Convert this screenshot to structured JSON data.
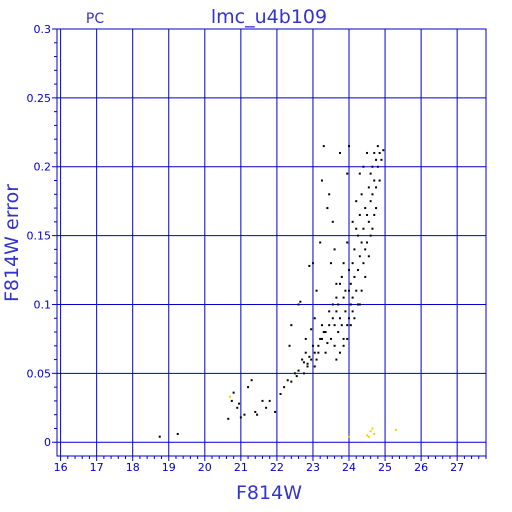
{
  "chart_data": {
    "type": "scatter",
    "title": "lmc_u4b109",
    "corner_label": "PC",
    "xlabel": "F814W",
    "ylabel": "F814W error",
    "xlim": [
      15.9,
      27.8
    ],
    "ylim": [
      -0.01,
      0.3
    ],
    "xticks": [
      "16",
      "17",
      "18",
      "19",
      "20",
      "21",
      "22",
      "23",
      "24",
      "25",
      "26",
      "27"
    ],
    "yticks": [
      "0",
      "0.05",
      "0.1",
      "0.15",
      "0.2",
      "0.25",
      "0.3"
    ],
    "grid": true,
    "colors": {
      "grid": "#0000cc",
      "axes": "#0000cc",
      "main_points": "#000000",
      "minor_points": "#ffcc00"
    },
    "series": [
      {
        "color": "#000000",
        "points": [
          [
            18.75,
            0.004
          ],
          [
            19.25,
            0.006
          ],
          [
            20.65,
            0.017
          ],
          [
            20.75,
            0.03
          ],
          [
            20.8,
            0.036
          ],
          [
            20.9,
            0.025
          ],
          [
            20.95,
            0.028
          ],
          [
            21.0,
            0.018
          ],
          [
            21.1,
            0.02
          ],
          [
            21.2,
            0.04
          ],
          [
            21.3,
            0.045
          ],
          [
            21.4,
            0.022
          ],
          [
            21.45,
            0.02
          ],
          [
            21.6,
            0.03
          ],
          [
            21.7,
            0.025
          ],
          [
            21.95,
            0.022
          ],
          [
            21.8,
            0.03
          ],
          [
            22.1,
            0.035
          ],
          [
            22.2,
            0.04
          ],
          [
            22.3,
            0.045
          ],
          [
            22.35,
            0.07
          ],
          [
            22.4,
            0.085
          ],
          [
            22.4,
            0.044
          ],
          [
            22.5,
            0.05
          ],
          [
            22.55,
            0.048
          ],
          [
            22.6,
            0.052
          ],
          [
            22.6,
            0.1
          ],
          [
            22.65,
            0.102
          ],
          [
            22.7,
            0.06
          ],
          [
            22.75,
            0.058
          ],
          [
            22.8,
            0.065
          ],
          [
            22.8,
            0.075
          ],
          [
            22.85,
            0.057
          ],
          [
            22.9,
            0.128
          ],
          [
            22.9,
            0.062
          ],
          [
            22.95,
            0.082
          ],
          [
            23.0,
            0.13
          ],
          [
            23.0,
            0.07
          ],
          [
            23.05,
            0.09
          ],
          [
            23.05,
            0.055
          ],
          [
            23.1,
            0.06
          ],
          [
            23.1,
            0.11
          ],
          [
            23.15,
            0.065
          ],
          [
            23.2,
            0.145
          ],
          [
            23.2,
            0.075
          ],
          [
            23.25,
            0.19
          ],
          [
            23.25,
            0.085
          ],
          [
            23.3,
            0.215
          ],
          [
            23.3,
            0.08
          ],
          [
            23.35,
            0.065
          ],
          [
            23.4,
            0.17
          ],
          [
            23.4,
            0.072
          ],
          [
            23.45,
            0.095
          ],
          [
            23.45,
            0.18
          ],
          [
            23.5,
            0.075
          ],
          [
            23.5,
            0.13
          ],
          [
            23.55,
            0.09
          ],
          [
            23.55,
            0.16
          ],
          [
            23.6,
            0.085
          ],
          [
            23.6,
            0.14
          ],
          [
            23.6,
            0.07
          ],
          [
            23.65,
            0.095
          ],
          [
            23.65,
            0.115
          ],
          [
            23.7,
            0.08
          ],
          [
            23.7,
            0.1
          ],
          [
            23.75,
            0.21
          ],
          [
            23.75,
            0.09
          ],
          [
            23.8,
            0.12
          ],
          [
            23.8,
            0.085
          ],
          [
            23.85,
            0.105
          ],
          [
            23.85,
            0.075
          ],
          [
            23.9,
            0.095
          ],
          [
            23.9,
            0.11
          ],
          [
            23.95,
            0.195
          ],
          [
            23.95,
            0.085
          ],
          [
            24.0,
            0.215
          ],
          [
            24.0,
            0.11
          ],
          [
            24.0,
            0.125
          ],
          [
            24.0,
            0.09
          ],
          [
            24.05,
            0.1
          ],
          [
            24.05,
            0.115
          ],
          [
            24.1,
            0.105
          ],
          [
            24.1,
            0.13
          ],
          [
            24.1,
            0.095
          ],
          [
            24.15,
            0.14
          ],
          [
            24.15,
            0.12
          ],
          [
            24.2,
            0.155
          ],
          [
            24.2,
            0.11
          ],
          [
            24.25,
            0.15
          ],
          [
            24.25,
            0.125
          ],
          [
            24.3,
            0.165
          ],
          [
            24.3,
            0.135
          ],
          [
            24.3,
            0.1
          ],
          [
            24.35,
            0.18
          ],
          [
            24.35,
            0.145
          ],
          [
            24.4,
            0.2
          ],
          [
            24.4,
            0.155
          ],
          [
            24.4,
            0.13
          ],
          [
            24.45,
            0.17
          ],
          [
            24.45,
            0.14
          ],
          [
            24.5,
            0.21
          ],
          [
            24.5,
            0.165
          ],
          [
            24.5,
            0.145
          ],
          [
            24.55,
            0.185
          ],
          [
            24.55,
            0.16
          ],
          [
            24.6,
            0.195
          ],
          [
            24.6,
            0.175
          ],
          [
            24.6,
            0.15
          ],
          [
            24.65,
            0.2
          ],
          [
            24.65,
            0.18
          ],
          [
            24.7,
            0.21
          ],
          [
            24.7,
            0.19
          ],
          [
            24.7,
            0.165
          ],
          [
            24.75,
            0.205
          ],
          [
            24.75,
            0.185
          ],
          [
            24.8,
            0.215
          ],
          [
            24.8,
            0.2
          ],
          [
            24.85,
            0.21
          ],
          [
            24.9,
            0.205
          ],
          [
            24.95,
            0.212
          ],
          [
            24.3,
            0.195
          ],
          [
            24.2,
            0.175
          ],
          [
            24.1,
            0.16
          ],
          [
            23.95,
            0.145
          ],
          [
            23.85,
            0.13
          ],
          [
            23.75,
            0.115
          ],
          [
            23.65,
            0.105
          ],
          [
            23.55,
            0.1
          ],
          [
            23.45,
            0.085
          ],
          [
            23.35,
            0.08
          ],
          [
            23.25,
            0.075
          ],
          [
            23.15,
            0.07
          ],
          [
            23.05,
            0.065
          ],
          [
            22.95,
            0.06
          ],
          [
            22.85,
            0.055
          ],
          [
            22.75,
            0.05
          ],
          [
            24.45,
            0.12
          ],
          [
            24.55,
            0.135
          ],
          [
            24.65,
            0.155
          ],
          [
            24.75,
            0.17
          ],
          [
            24.85,
            0.19
          ],
          [
            24.35,
            0.11
          ],
          [
            24.25,
            0.1
          ],
          [
            24.15,
            0.09
          ],
          [
            24.05,
            0.085
          ],
          [
            23.95,
            0.075
          ],
          [
            23.85,
            0.07
          ],
          [
            23.75,
            0.065
          ],
          [
            23.65,
            0.06
          ]
        ]
      },
      {
        "color": "#ffcc00",
        "points": [
          [
            20.7,
            0.033
          ],
          [
            24.0,
            0.004
          ],
          [
            24.5,
            0.005
          ],
          [
            24.55,
            0.004
          ],
          [
            24.6,
            0.008
          ],
          [
            24.65,
            0.01
          ],
          [
            24.7,
            0.006
          ],
          [
            25.3,
            0.009
          ]
        ]
      }
    ]
  }
}
